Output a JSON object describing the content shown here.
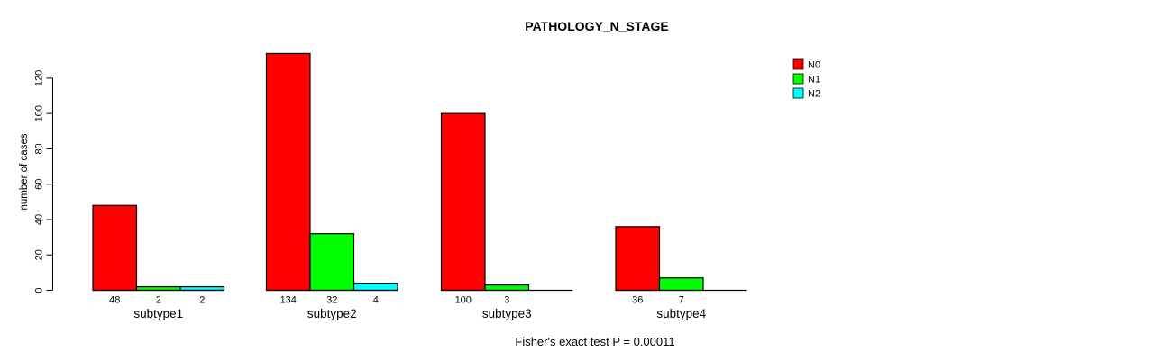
{
  "page": {
    "background_color": "#FFFFFF",
    "text_color": "#000000"
  },
  "chart_data": {
    "type": "bar",
    "title": "PATHOLOGY_N_STAGE",
    "xlabel": "",
    "ylabel": "number of cases",
    "footer": "Fisher's exact test P = 0.00011",
    "categories": [
      "subtype1",
      "subtype2",
      "subtype3",
      "subtype4"
    ],
    "series": [
      {
        "name": "N0",
        "color": "#FF0000",
        "values": [
          48,
          134,
          100,
          36
        ]
      },
      {
        "name": "N1",
        "color": "#00FF00",
        "values": [
          2,
          32,
          3,
          7
        ]
      },
      {
        "name": "N2",
        "color": "#00FFFF",
        "values": [
          2,
          4,
          0,
          0
        ]
      }
    ],
    "bar_value_labels": [
      [
        "48",
        "2",
        "2"
      ],
      [
        "134",
        "32",
        "4"
      ],
      [
        "100",
        "3",
        ""
      ],
      [
        "36",
        "7",
        ""
      ]
    ],
    "yticks": [
      0,
      20,
      40,
      60,
      80,
      100,
      120
    ],
    "ylim": [
      0,
      134
    ],
    "grid": false,
    "bar_border_color": "#000000",
    "legend": {
      "position": "top-right",
      "entries": [
        {
          "label": "N0",
          "color": "#FF0000"
        },
        {
          "label": "N1",
          "color": "#00FF00"
        },
        {
          "label": "N2",
          "color": "#00FFFF"
        }
      ]
    }
  }
}
